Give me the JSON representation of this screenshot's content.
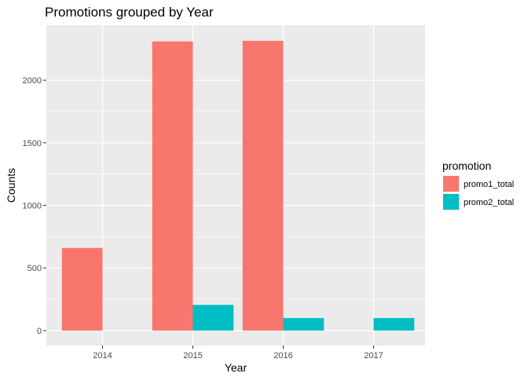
{
  "chart_data": {
    "type": "bar",
    "title": "Promotions grouped by Year",
    "xlabel": "Year",
    "ylabel": "Counts",
    "categories": [
      "2014",
      "2015",
      "2016",
      "2017"
    ],
    "series": [
      {
        "name": "promo1_total",
        "color": "#F8766D",
        "values": [
          660,
          2310,
          2315,
          null
        ]
      },
      {
        "name": "promo2_total",
        "color": "#00BFC4",
        "values": [
          null,
          205,
          100,
          100
        ]
      }
    ],
    "ylim": [
      -120,
      2440
    ],
    "yticks": [
      0,
      500,
      1000,
      1500,
      2000
    ],
    "grid": true,
    "legend": {
      "title": "promotion",
      "position": "right"
    }
  }
}
